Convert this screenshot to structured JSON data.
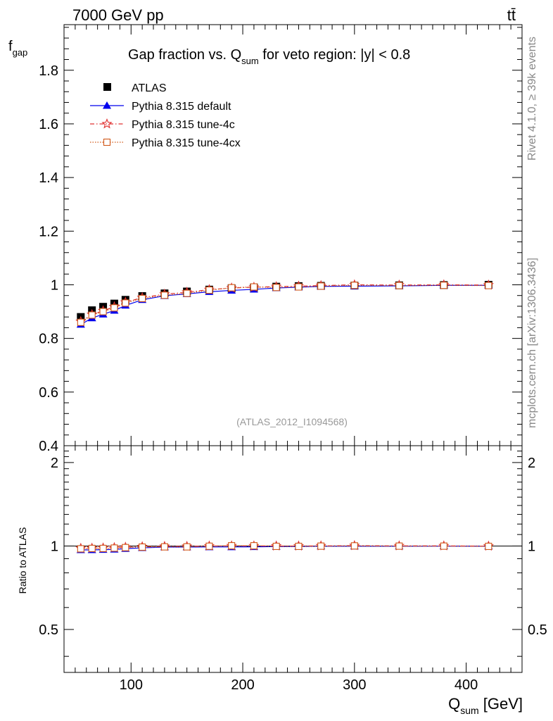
{
  "header": {
    "energy_label": "7000 GeV pp",
    "process_label": "tt̄",
    "rivet_label": "Rivet 4.1.0, ≥ 39k events",
    "mcplots_label": "mcplots.cern.ch [arXiv:1306.3436]",
    "analysis_id": "(ATLAS_2012_I1094568)"
  },
  "chart_data": [
    {
      "type": "scatter",
      "panel": "main",
      "title_parts": {
        "main": "Gap fraction vs. Q",
        "sub": "sum",
        "tail": " for veto region: |y| < 0.8"
      },
      "ylabel_parts": {
        "main": "f",
        "sub": "gap"
      },
      "xlim": [
        40,
        450
      ],
      "ylim": [
        0.4,
        1.97
      ],
      "yticks": [
        0.4,
        0.6,
        0.8,
        1,
        1.2,
        1.4,
        1.6,
        1.8
      ],
      "ytick_labels": [
        "0.4",
        "0.6",
        "0.8",
        "1",
        "1.2",
        "1.4",
        "1.6",
        "1.8"
      ],
      "x": [
        55,
        65,
        75,
        85,
        95,
        110,
        130,
        150,
        170,
        190,
        210,
        230,
        250,
        270,
        300,
        340,
        380,
        420
      ],
      "series": [
        {
          "name": "ATLAS",
          "color": "#000000",
          "marker": "square",
          "values": [
            0.88,
            0.905,
            0.918,
            0.93,
            0.944,
            0.958,
            0.968,
            0.975,
            0.982,
            0.987,
            0.99,
            0.993,
            0.995,
            0.996,
            0.997,
            0.998,
            0.999,
            1.0
          ]
        },
        {
          "name": "Pythia 8.315 default",
          "color": "#0000ee",
          "marker": "triangle",
          "dash": "",
          "values": [
            0.852,
            0.876,
            0.89,
            0.904,
            0.923,
            0.944,
            0.959,
            0.966,
            0.974,
            0.979,
            0.983,
            0.988,
            0.991,
            0.994,
            0.995,
            0.996,
            0.998,
            0.998
          ]
        },
        {
          "name": "Pythia 8.315 tune-4c",
          "color": "#e03030",
          "marker": "star",
          "dash": "6,3,1.5,3",
          "values": [
            0.863,
            0.889,
            0.903,
            0.918,
            0.935,
            0.952,
            0.965,
            0.972,
            0.982,
            0.988,
            0.991,
            0.993,
            0.995,
            0.997,
            1.0,
            0.999,
            1.0,
            0.999
          ]
        },
        {
          "name": "Pythia 8.315 tune-4cx",
          "color": "#d05818",
          "marker": "open-square",
          "dash": "1.5,2",
          "values": [
            0.86,
            0.887,
            0.9,
            0.914,
            0.932,
            0.949,
            0.961,
            0.968,
            0.98,
            0.989,
            0.992,
            0.99,
            0.992,
            0.995,
            0.998,
            0.997,
            0.998,
            0.997
          ]
        }
      ]
    },
    {
      "type": "scatter",
      "panel": "ratio",
      "ylabel": "Ratio to ATLAS",
      "xlabel_parts": {
        "main": "Q",
        "sub": "sum",
        "tail": " [GeV]"
      },
      "xlim": [
        40,
        450
      ],
      "ylim": [
        0.35,
        2.3
      ],
      "log_y": true,
      "yticks": [
        0.5,
        1,
        2
      ],
      "ytick_labels": [
        "0.5",
        "1",
        "2"
      ],
      "xticks": [
        100,
        200,
        300,
        400
      ],
      "xtick_labels": [
        "100",
        "200",
        "300",
        "400"
      ],
      "x": [
        55,
        65,
        75,
        85,
        95,
        110,
        130,
        150,
        170,
        190,
        210,
        230,
        250,
        270,
        300,
        340,
        380,
        420
      ],
      "series": [
        {
          "name": "Pythia 8.315 default",
          "color": "#0000ee",
          "marker": "triangle",
          "dash": "",
          "values": [
            0.968,
            0.968,
            0.97,
            0.972,
            0.978,
            0.985,
            0.991,
            0.991,
            0.992,
            0.992,
            0.993,
            0.995,
            0.996,
            0.998,
            0.998,
            0.998,
            0.999,
            0.998
          ]
        },
        {
          "name": "Pythia 8.315 tune-4c",
          "color": "#e03030",
          "marker": "star",
          "dash": "6,3,1.5,3",
          "values": [
            0.981,
            0.982,
            0.984,
            0.987,
            0.99,
            0.994,
            0.997,
            0.997,
            1.0,
            1.001,
            1.001,
            1.0,
            1.0,
            1.001,
            1.003,
            1.001,
            1.001,
            0.999
          ]
        },
        {
          "name": "Pythia 8.315 tune-4cx",
          "color": "#d05818",
          "marker": "open-square",
          "dash": "1.5,2",
          "values": [
            0.977,
            0.98,
            0.98,
            0.983,
            0.987,
            0.991,
            0.993,
            0.993,
            0.998,
            1.002,
            1.002,
            0.997,
            0.997,
            0.999,
            1.001,
            0.999,
            0.999,
            0.997
          ]
        }
      ]
    }
  ]
}
